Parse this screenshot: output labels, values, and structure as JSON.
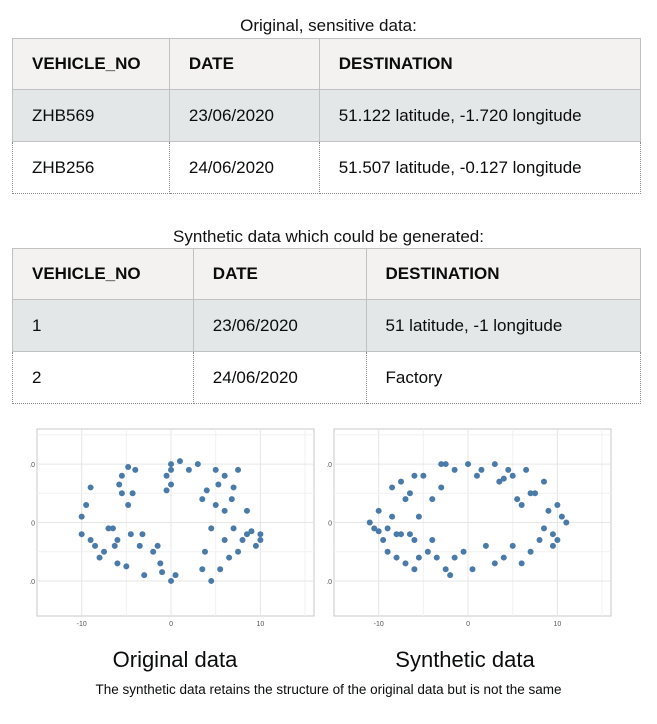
{
  "original": {
    "caption": "Original, sensitive data:",
    "headers": [
      "VEHICLE_NO",
      "DATE",
      "DESTINATION"
    ],
    "rows": [
      [
        "ZHB569",
        "23/06/2020",
        "51.122 latitude, -1.720 longitude"
      ],
      [
        "ZHB256",
        "24/06/2020",
        "51.507 latitude, -0.127 longitude"
      ]
    ]
  },
  "synthetic": {
    "caption": "Synthetic data which could be generated:",
    "headers": [
      "VEHICLE_NO",
      "DATE",
      "DESTINATION"
    ],
    "rows": [
      [
        "1",
        "23/06/2020",
        "51 latitude, -1 longitude"
      ],
      [
        "2",
        "24/06/2020",
        "Factory"
      ]
    ]
  },
  "colors": {
    "points": "#4a7aa8",
    "header_bg": "#f3f2f1",
    "shaded_row": "#e3e7e8",
    "border": "#bfc1c3"
  },
  "chart_data": [
    {
      "type": "scatter",
      "title": "Original data",
      "x_ticks": [
        "-10",
        "0",
        "10"
      ],
      "y_ticks": [
        "10",
        "0",
        "10"
      ],
      "xlim": [
        -15,
        16
      ],
      "ylim": [
        -16,
        16
      ],
      "points": [
        [
          -10,
          -2
        ],
        [
          -10,
          1
        ],
        [
          -9.5,
          3
        ],
        [
          -9,
          -3
        ],
        [
          -9,
          6
        ],
        [
          -8.5,
          -4
        ],
        [
          -8,
          -6
        ],
        [
          -7.5,
          -5
        ],
        [
          -7,
          -1
        ],
        [
          -6.5,
          -1
        ],
        [
          -6.3,
          -4
        ],
        [
          -6,
          -3
        ],
        [
          -6,
          -7
        ],
        [
          -5.8,
          6.5
        ],
        [
          -5.5,
          8
        ],
        [
          -5.5,
          5
        ],
        [
          -5,
          -7.5
        ],
        [
          -4.8,
          9.5
        ],
        [
          -4.8,
          3
        ],
        [
          -4.5,
          -2
        ],
        [
          -4.3,
          5
        ],
        [
          -4,
          9
        ],
        [
          -3.5,
          -4
        ],
        [
          -3.2,
          -2
        ],
        [
          -3,
          -9
        ],
        [
          -2,
          -5
        ],
        [
          -1.5,
          -4
        ],
        [
          -1.2,
          -7
        ],
        [
          -1,
          -8.5
        ],
        [
          -0.5,
          8
        ],
        [
          -0.5,
          5.5
        ],
        [
          0,
          -10
        ],
        [
          0,
          6.5
        ],
        [
          0,
          9
        ],
        [
          0,
          10
        ],
        [
          0.5,
          -9
        ],
        [
          1,
          10.5
        ],
        [
          2,
          9
        ],
        [
          3,
          10
        ],
        [
          3.5,
          4
        ],
        [
          3.5,
          -8
        ],
        [
          3.8,
          -5
        ],
        [
          4,
          5.5
        ],
        [
          4.5,
          -10
        ],
        [
          4.5,
          -1
        ],
        [
          5,
          9
        ],
        [
          5.3,
          6.5
        ],
        [
          5.5,
          -8
        ],
        [
          6,
          8
        ],
        [
          6,
          -3
        ],
        [
          6.5,
          -6
        ],
        [
          6.8,
          4
        ],
        [
          7,
          6
        ],
        [
          7,
          -1
        ],
        [
          7.5,
          -5
        ],
        [
          8,
          -3
        ],
        [
          8.5,
          -2
        ],
        [
          8.5,
          2
        ],
        [
          9,
          -1.5
        ],
        [
          9.5,
          -4
        ],
        [
          10,
          -2
        ],
        [
          10,
          -3
        ],
        [
          7.5,
          9
        ],
        [
          6,
          2
        ],
        [
          5,
          3
        ]
      ]
    },
    {
      "type": "scatter",
      "title": "Synthetic data",
      "x_ticks": [
        "-10",
        "0",
        "10"
      ],
      "y_ticks": [
        "10",
        "0",
        "10"
      ],
      "xlim": [
        -15,
        16
      ],
      "ylim": [
        -16,
        16
      ],
      "points": [
        [
          -11,
          0
        ],
        [
          -10.5,
          -1
        ],
        [
          -10,
          -1.5
        ],
        [
          -10,
          2
        ],
        [
          -9.5,
          -3
        ],
        [
          -9,
          -5
        ],
        [
          -8.5,
          6
        ],
        [
          -8.5,
          1
        ],
        [
          -8,
          -2
        ],
        [
          -8,
          -6
        ],
        [
          -7.5,
          -2
        ],
        [
          -7.5,
          7
        ],
        [
          -7,
          4
        ],
        [
          -7,
          -7
        ],
        [
          -6.5,
          -2
        ],
        [
          -6.5,
          5
        ],
        [
          -6,
          8
        ],
        [
          -6,
          -8
        ],
        [
          -5.5,
          1
        ],
        [
          -5.5,
          -6
        ],
        [
          -5,
          8
        ],
        [
          -4.5,
          -5
        ],
        [
          -4,
          4
        ],
        [
          -4,
          -3
        ],
        [
          -3.5,
          -6
        ],
        [
          -3,
          6
        ],
        [
          -3,
          10
        ],
        [
          -2.5,
          10
        ],
        [
          -2.5,
          -8
        ],
        [
          -2,
          -9
        ],
        [
          -1.5,
          9
        ],
        [
          -1.5,
          -6
        ],
        [
          -0.5,
          -5
        ],
        [
          0,
          10
        ],
        [
          0.5,
          -8
        ],
        [
          1,
          8
        ],
        [
          1.5,
          9
        ],
        [
          2,
          -4
        ],
        [
          3,
          10
        ],
        [
          3,
          -7
        ],
        [
          3.5,
          7
        ],
        [
          4,
          -6
        ],
        [
          4.5,
          9
        ],
        [
          5,
          -4
        ],
        [
          5,
          8
        ],
        [
          5.5,
          4
        ],
        [
          6,
          -7
        ],
        [
          6.5,
          9
        ],
        [
          7,
          -5
        ],
        [
          7.5,
          5
        ],
        [
          8,
          -3
        ],
        [
          8.5,
          -1
        ],
        [
          8.5,
          7
        ],
        [
          9,
          2
        ],
        [
          9.5,
          -2
        ],
        [
          9.5,
          -4
        ],
        [
          10,
          -3
        ],
        [
          10.5,
          1
        ],
        [
          11,
          0
        ],
        [
          10,
          3
        ],
        [
          6,
          3
        ],
        [
          7,
          5
        ],
        [
          4,
          7.5
        ],
        [
          -9,
          -1
        ],
        [
          -6,
          -3
        ]
      ]
    }
  ],
  "footnote": "The synthetic data retains the structure of the original data but is not the same"
}
